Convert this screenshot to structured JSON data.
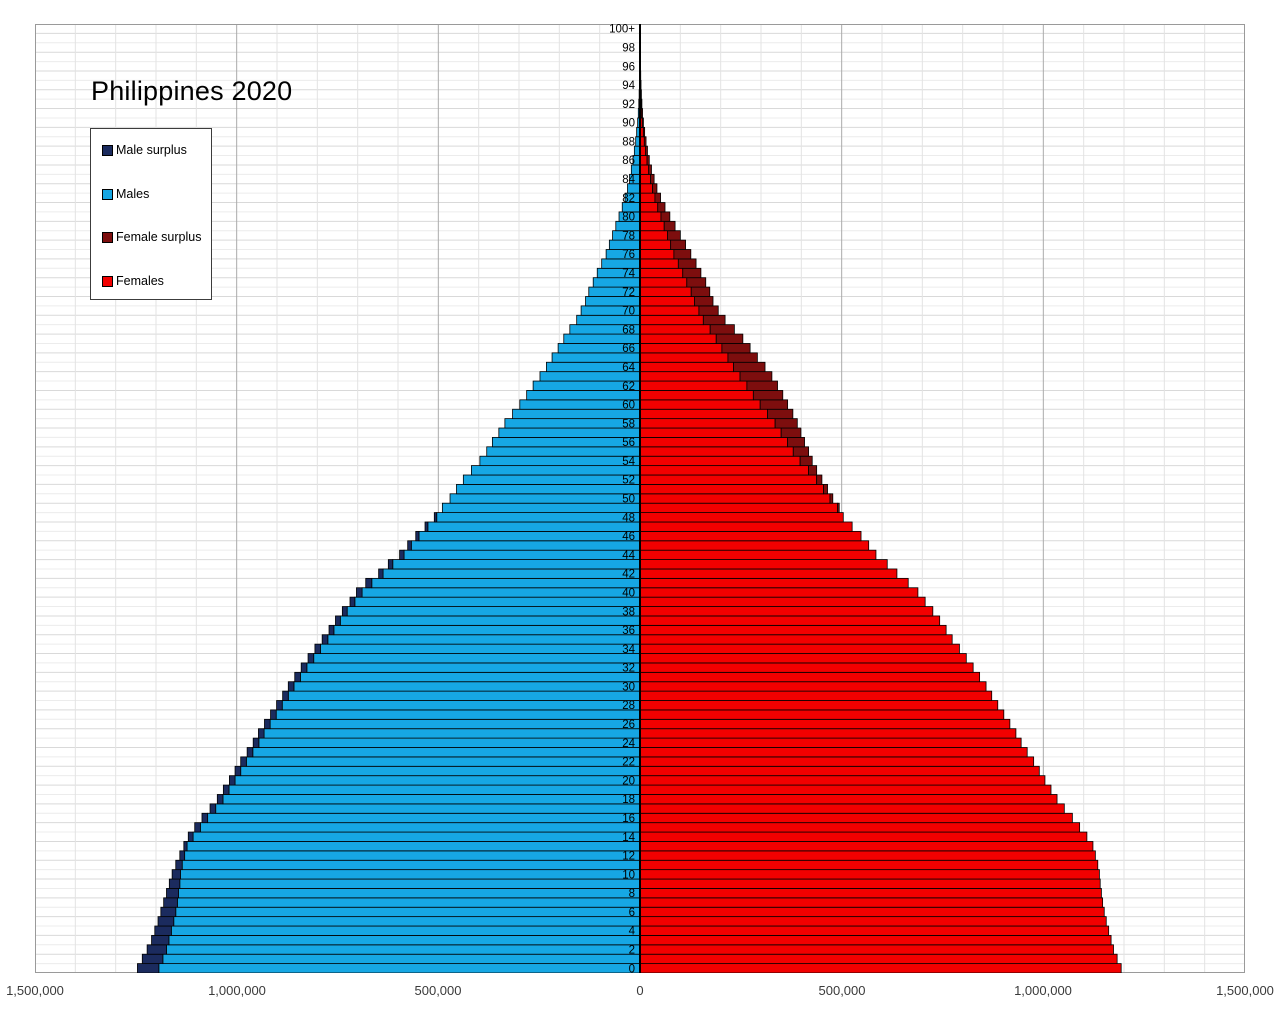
{
  "chart_data": {
    "type": "bar",
    "subtype": "population-pyramid",
    "title": "Philippines 2020",
    "grid": true,
    "legend_position": "upper-left",
    "x_axis": {
      "max": 1500000,
      "major_tick": 500000,
      "minor_tick": 100000,
      "tick_labels": [
        "1,500,000",
        "1,000,000",
        "500,000",
        "0",
        "500,000",
        "1,000,000",
        "1,500,000"
      ]
    },
    "y_axis": {
      "age_min": 0,
      "age_max": 100,
      "tick_step": 2,
      "top_label": "100+"
    },
    "colors": {
      "males": "#16A7E4",
      "male_surplus": "#1B2B5E",
      "females": "#F20000",
      "female_surplus": "#7D0E0E",
      "grid_minor": "#ececec",
      "grid_major_h": "#d9d9d9",
      "grid_minor_v": "#e3e3e3",
      "grid_major_v": "#ababab",
      "plot_border": "#9a9a9a",
      "center_axis": "#000000"
    },
    "males": [
      1246000,
      1234000,
      1222000,
      1211000,
      1203000,
      1195000,
      1188000,
      1181000,
      1174000,
      1167000,
      1160000,
      1151000,
      1141000,
      1131000,
      1120000,
      1104000,
      1086000,
      1066000,
      1048000,
      1033000,
      1018000,
      1004000,
      990000,
      974000,
      959000,
      946000,
      931000,
      916000,
      901000,
      886000,
      872000,
      856000,
      840000,
      823000,
      806000,
      788000,
      771000,
      755000,
      738000,
      719000,
      703000,
      680000,
      648000,
      624000,
      596000,
      576000,
      556000,
      533000,
      510000,
      490000,
      471000,
      455000,
      438000,
      418000,
      397000,
      380000,
      366000,
      350000,
      335000,
      316000,
      298000,
      281000,
      265000,
      248000,
      232000,
      218000,
      203000,
      189000,
      174000,
      157000,
      146000,
      135000,
      127000,
      116000,
      106000,
      95000,
      84000,
      76000,
      68000,
      60000,
      52000,
      44000,
      37000,
      31000,
      26000,
      21500,
      17400,
      14000,
      10700,
      8300,
      5800,
      4200,
      3000,
      2100,
      1500,
      1000,
      700,
      450,
      300,
      200,
      350
    ],
    "females": [
      1193000,
      1183000,
      1174000,
      1168000,
      1162000,
      1156000,
      1151000,
      1147000,
      1144000,
      1141000,
      1139000,
      1135000,
      1129000,
      1123000,
      1108000,
      1090000,
      1072000,
      1052000,
      1034000,
      1019000,
      1004000,
      990000,
      976000,
      960000,
      945000,
      932000,
      917000,
      902000,
      887000,
      872000,
      858000,
      842000,
      826000,
      809000,
      792000,
      774000,
      759000,
      743000,
      726000,
      707000,
      689000,
      665000,
      637000,
      613000,
      585000,
      567000,
      548000,
      526000,
      504000,
      494000,
      478000,
      465000,
      451000,
      438000,
      427000,
      418000,
      408000,
      399000,
      390000,
      379000,
      366000,
      354000,
      341000,
      327000,
      310000,
      291000,
      273000,
      255000,
      234000,
      211000,
      194000,
      181000,
      173000,
      163000,
      151000,
      139000,
      126000,
      113000,
      100000,
      87000,
      74000,
      62000,
      51000,
      42000,
      35000,
      28500,
      23000,
      18500,
      15000,
      11500,
      8500,
      6300,
      4700,
      3500,
      2500,
      1800,
      1200,
      800,
      550,
      350,
      600
    ]
  },
  "legend": {
    "items": [
      {
        "label": "Male surplus",
        "color": "#1B2B5E"
      },
      {
        "label": "Males",
        "color": "#16A7E4"
      },
      {
        "label": "Female surplus",
        "color": "#7D0E0E"
      },
      {
        "label": "Females",
        "color": "#F20000"
      }
    ]
  }
}
